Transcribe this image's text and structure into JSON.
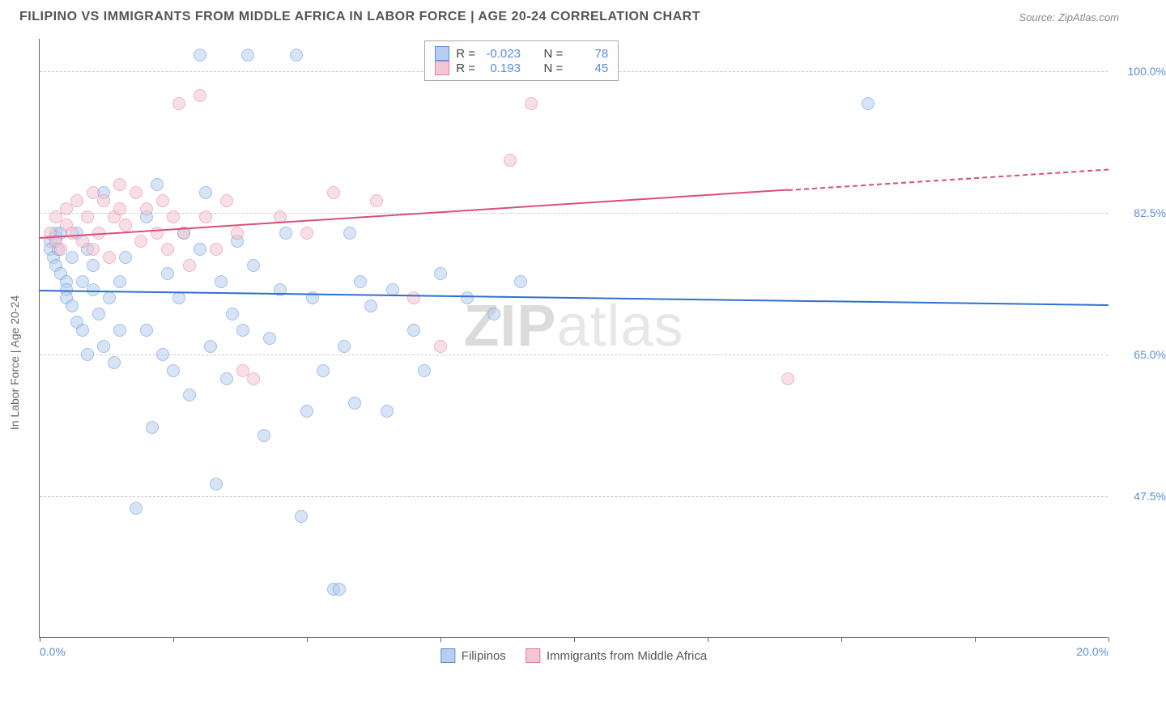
{
  "header": {
    "title": "FILIPINO VS IMMIGRANTS FROM MIDDLE AFRICA IN LABOR FORCE | AGE 20-24 CORRELATION CHART",
    "source_prefix": "Source: ",
    "source_name": "ZipAtlas.com"
  },
  "axes": {
    "ylabel": "In Labor Force | Age 20-24",
    "x_min_label": "0.0%",
    "x_max_label": "20.0%",
    "x_domain": [
      0,
      20
    ],
    "y_domain": [
      30,
      104
    ],
    "x_ticks_at": [
      0,
      2.5,
      5,
      7.5,
      10,
      12.5,
      15,
      17.5,
      20
    ],
    "y_gridlines": [
      {
        "value": 47.5,
        "label": "47.5%"
      },
      {
        "value": 65.0,
        "label": "65.0%"
      },
      {
        "value": 82.5,
        "label": "82.5%"
      },
      {
        "value": 100.0,
        "label": "100.0%"
      }
    ]
  },
  "series": {
    "a": {
      "name": "Filipinos",
      "color_fill": "#b6cff0",
      "color_stroke": "#5b8fd6",
      "fill_opacity": 0.55,
      "R": "-0.023",
      "N": "78",
      "trend": {
        "x1": 0,
        "y1": 73.0,
        "x2": 20,
        "y2": 71.2,
        "solid_until_x": 20,
        "color": "#2f6fd0"
      },
      "points": [
        [
          0.2,
          79
        ],
        [
          0.2,
          78
        ],
        [
          0.25,
          77
        ],
        [
          0.3,
          80
        ],
        [
          0.3,
          79.5
        ],
        [
          0.3,
          76
        ],
        [
          0.35,
          78
        ],
        [
          0.4,
          80
        ],
        [
          0.4,
          75
        ],
        [
          0.5,
          74
        ],
        [
          0.5,
          73
        ],
        [
          0.5,
          72
        ],
        [
          0.6,
          77
        ],
        [
          0.6,
          71
        ],
        [
          0.7,
          80
        ],
        [
          0.7,
          69
        ],
        [
          0.8,
          74
        ],
        [
          0.8,
          68
        ],
        [
          0.9,
          78
        ],
        [
          0.9,
          65
        ],
        [
          1.0,
          76
        ],
        [
          1.0,
          73
        ],
        [
          1.1,
          70
        ],
        [
          1.2,
          85
        ],
        [
          1.2,
          66
        ],
        [
          1.3,
          72
        ],
        [
          1.4,
          64
        ],
        [
          1.5,
          74
        ],
        [
          1.5,
          68
        ],
        [
          1.6,
          77
        ],
        [
          1.8,
          46
        ],
        [
          2.0,
          82
        ],
        [
          2.0,
          68
        ],
        [
          2.1,
          56
        ],
        [
          2.2,
          86
        ],
        [
          2.3,
          65
        ],
        [
          2.4,
          75
        ],
        [
          2.5,
          63
        ],
        [
          2.6,
          72
        ],
        [
          2.7,
          80
        ],
        [
          2.8,
          60
        ],
        [
          3.0,
          78
        ],
        [
          3.0,
          102
        ],
        [
          3.1,
          85
        ],
        [
          3.2,
          66
        ],
        [
          3.3,
          49
        ],
        [
          3.4,
          74
        ],
        [
          3.5,
          62
        ],
        [
          3.6,
          70
        ],
        [
          3.7,
          79
        ],
        [
          3.8,
          68
        ],
        [
          3.9,
          102
        ],
        [
          4.0,
          76
        ],
        [
          4.2,
          55
        ],
        [
          4.3,
          67
        ],
        [
          4.5,
          73
        ],
        [
          4.6,
          80
        ],
        [
          4.8,
          102
        ],
        [
          4.9,
          45
        ],
        [
          5.0,
          58
        ],
        [
          5.1,
          72
        ],
        [
          5.3,
          63
        ],
        [
          5.5,
          36
        ],
        [
          5.6,
          36
        ],
        [
          5.7,
          66
        ],
        [
          5.8,
          80
        ],
        [
          5.9,
          59
        ],
        [
          6.0,
          74
        ],
        [
          6.2,
          71
        ],
        [
          6.5,
          58
        ],
        [
          6.6,
          73
        ],
        [
          7.0,
          68
        ],
        [
          7.2,
          63
        ],
        [
          7.5,
          75
        ],
        [
          8.0,
          72
        ],
        [
          8.5,
          70
        ],
        [
          9.0,
          74
        ],
        [
          15.5,
          96
        ]
      ]
    },
    "b": {
      "name": "Immigrants from Middle Africa",
      "color_fill": "#f4c6d3",
      "color_stroke": "#e07a9a",
      "fill_opacity": 0.55,
      "R": "0.193",
      "N": "45",
      "trend": {
        "x1": 0,
        "y1": 79.5,
        "x2": 20,
        "y2": 88.0,
        "solid_until_x": 14,
        "color": "#d94f7a"
      },
      "points": [
        [
          0.2,
          80
        ],
        [
          0.3,
          79
        ],
        [
          0.3,
          82
        ],
        [
          0.4,
          78
        ],
        [
          0.5,
          83
        ],
        [
          0.5,
          81
        ],
        [
          0.6,
          80
        ],
        [
          0.7,
          84
        ],
        [
          0.8,
          79
        ],
        [
          0.9,
          82
        ],
        [
          1.0,
          85
        ],
        [
          1.0,
          78
        ],
        [
          1.1,
          80
        ],
        [
          1.2,
          84
        ],
        [
          1.3,
          77
        ],
        [
          1.4,
          82
        ],
        [
          1.5,
          86
        ],
        [
          1.5,
          83
        ],
        [
          1.6,
          81
        ],
        [
          1.8,
          85
        ],
        [
          1.9,
          79
        ],
        [
          2.0,
          83
        ],
        [
          2.2,
          80
        ],
        [
          2.3,
          84
        ],
        [
          2.4,
          78
        ],
        [
          2.5,
          82
        ],
        [
          2.6,
          96
        ],
        [
          2.7,
          80
        ],
        [
          2.8,
          76
        ],
        [
          3.0,
          97
        ],
        [
          3.1,
          82
        ],
        [
          3.3,
          78
        ],
        [
          3.5,
          84
        ],
        [
          3.7,
          80
        ],
        [
          3.8,
          63
        ],
        [
          4.0,
          62
        ],
        [
          4.5,
          82
        ],
        [
          5.0,
          80
        ],
        [
          5.5,
          85
        ],
        [
          6.3,
          84
        ],
        [
          7.0,
          72
        ],
        [
          7.5,
          66
        ],
        [
          8.8,
          89
        ],
        [
          9.2,
          96
        ],
        [
          14.0,
          62
        ]
      ]
    }
  },
  "legend_stats": {
    "R_label": "R =",
    "N_label": "N ="
  },
  "watermark": {
    "part1": "ZIP",
    "part2": "atlas"
  }
}
